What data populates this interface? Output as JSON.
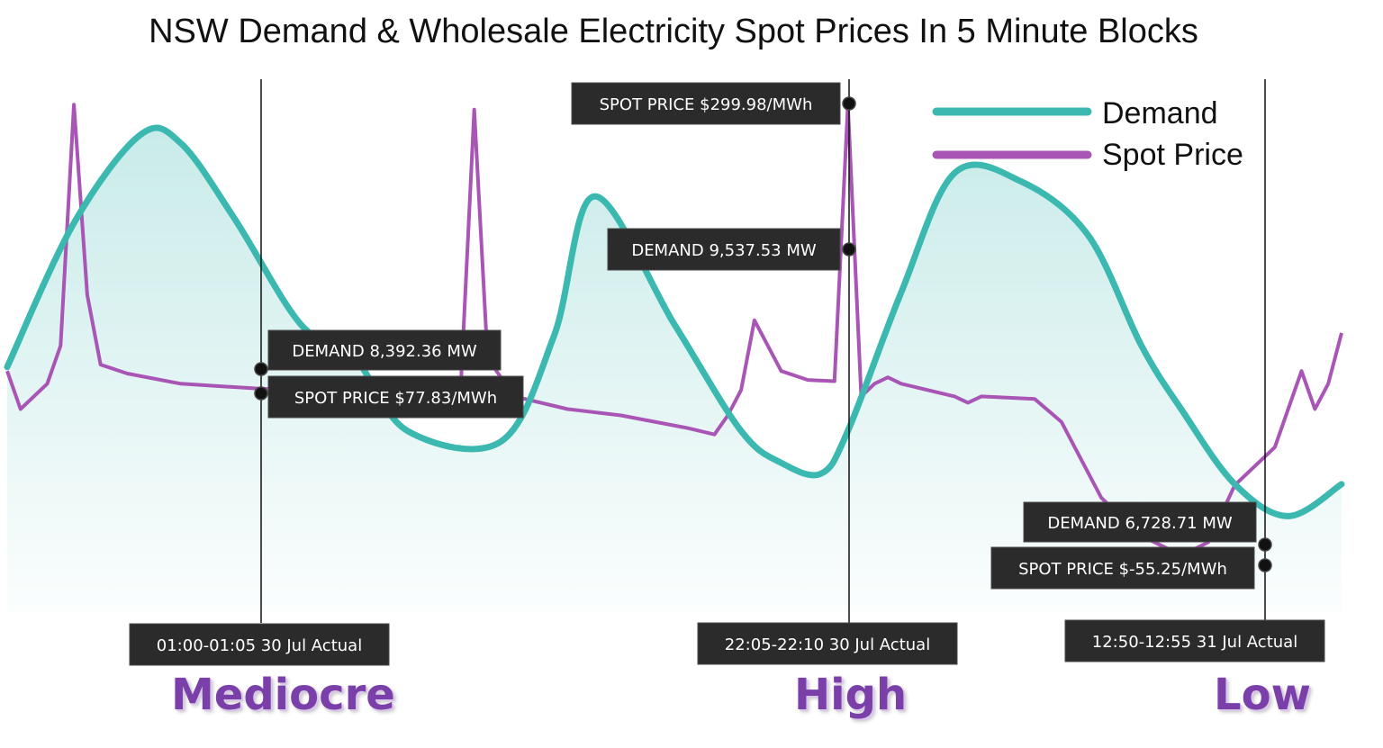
{
  "chart_data": {
    "type": "line",
    "title": "NSW Demand & Wholesale Electricity Spot Prices In 5 Minute Blocks",
    "xlabel": "",
    "ylabel": "",
    "grid": false,
    "legend": {
      "placement": "top-right"
    },
    "series": [
      {
        "name": "Demand",
        "color": "#3bb8b0",
        "unit": "MW",
        "x": [
          0,
          5,
          10,
          13,
          17,
          22,
          26,
          30,
          37,
          41,
          44,
          50,
          55,
          58,
          61,
          63,
          67,
          71,
          76,
          81,
          85,
          88,
          92,
          96,
          100
        ],
        "values": [
          8300,
          9650,
          10480,
          10400,
          9700,
          8700,
          8392.36,
          7700,
          7600,
          8600,
          9900,
          8700,
          7700,
          7400,
          7300,
          7700,
          9000,
          10120,
          10040,
          9537.53,
          8500,
          7900,
          7200,
          6900,
          7200
        ]
      },
      {
        "name": "Spot Price",
        "color": "#a855b5",
        "unit": "$/MWh",
        "x": [
          0,
          1,
          3,
          4,
          5,
          6,
          7,
          9,
          13,
          16,
          19,
          24,
          26,
          28,
          31,
          33,
          34,
          35,
          36,
          38,
          42,
          46,
          51,
          53,
          54,
          55,
          56,
          58,
          60,
          62,
          63,
          64,
          65,
          66,
          67,
          71,
          72,
          73,
          77,
          79,
          80,
          82,
          85,
          88,
          90,
          92,
          95,
          97,
          98,
          99,
          100
        ],
        "values": [
          90,
          60,
          80,
          110,
          300,
          150,
          95,
          88,
          80,
          78,
          76,
          74,
          77.83,
          70,
          68,
          72,
          80,
          296,
          100,
          70,
          60,
          55,
          45,
          40,
          55,
          75,
          130,
          90,
          83,
          82,
          299.98,
          70,
          80,
          85,
          80,
          70,
          65,
          70,
          68,
          50,
          30,
          -10,
          -40,
          -55.25,
          -45,
          0,
          30,
          90,
          60,
          80,
          120
        ]
      }
    ],
    "ylim_demand": [
      6000,
      11000
    ],
    "ylim_price": [
      -100,
      320
    ]
  },
  "legend": {
    "demand": "Demand",
    "price": "Spot Price"
  },
  "markers": [
    {
      "time_label": "01:00-01:05 30 Jul Actual",
      "demand_label": "DEMAND 8,392.36 MW",
      "price_label": "SPOT PRICE $77.83/MWh",
      "verdict": "Mediocre"
    },
    {
      "time_label": "22:05-22:10 30 Jul Actual",
      "demand_label": "DEMAND 9,537.53 MW",
      "price_label": "SPOT PRICE $299.98/MWh",
      "verdict": "High"
    },
    {
      "time_label": "12:50-12:55 31 Jul Actual",
      "demand_label": "DEMAND 6,728.71 MW",
      "price_label": "SPOT PRICE $-55.25/MWh",
      "verdict": "Low"
    }
  ]
}
